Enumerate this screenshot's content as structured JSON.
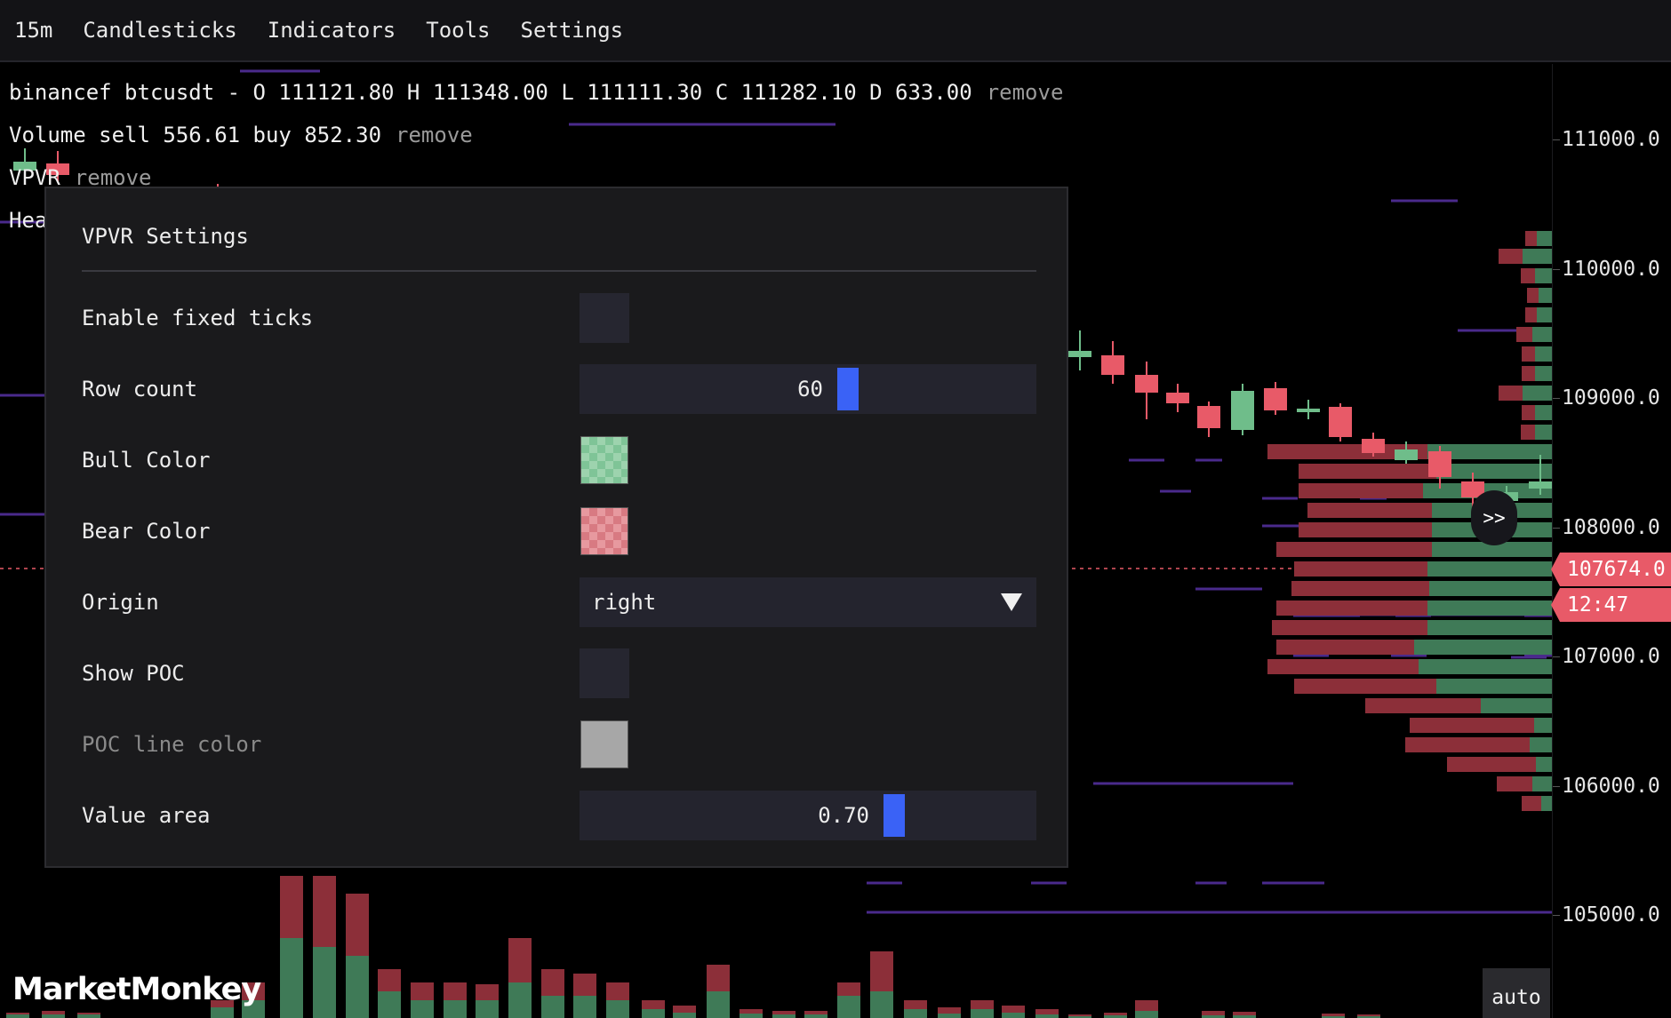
{
  "menu": {
    "interval": "15m",
    "chart_type": "Candlesticks",
    "indicators": "Indicators",
    "tools": "Tools",
    "settings": "Settings"
  },
  "legend": {
    "ohlc": "binancef btcusdt - O 111121.80 H 111348.00 L 111111.30 C 111282.10 D 633.00",
    "volume": "Volume sell 556.61 buy 852.30",
    "vpvr": "VPVR",
    "heatmap_partial": "Hea",
    "remove": "remove"
  },
  "dialog": {
    "title": "VPVR Settings",
    "rows": {
      "fixed_ticks": {
        "label": "Enable fixed ticks",
        "checked": false
      },
      "row_count": {
        "label": "Row count",
        "value": "60",
        "fraction": 0.587
      },
      "bull_color": {
        "label": "Bull Color",
        "color": "#8ccda2"
      },
      "bear_color": {
        "label": "Bear Color",
        "color": "#e08a91"
      },
      "origin": {
        "label": "Origin",
        "value": "right"
      },
      "show_poc": {
        "label": "Show POC",
        "checked": false
      },
      "poc_color": {
        "label": "POC line color",
        "color": "#a7a7a7",
        "disabled": true
      },
      "value_area": {
        "label": "Value area",
        "value": "0.70",
        "fraction": 0.689
      }
    }
  },
  "price_axis": {
    "labels": [
      "111000.0",
      "110000.0",
      "109000.0",
      "108000.0",
      "107000.0",
      "106000.0",
      "105000.0"
    ],
    "current_price": "107674.0",
    "countdown": "12:47"
  },
  "expand_label": ">>",
  "auto_label": "auto",
  "logo": "MarketMonkey",
  "colors": {
    "bull": "#6fbd8a",
    "bear": "#e85a68",
    "bull_dark": "#3f7a57",
    "bear_dark": "#8c2f39",
    "heat_line": "#4a2a8c",
    "accent": "#3a62f6"
  }
}
